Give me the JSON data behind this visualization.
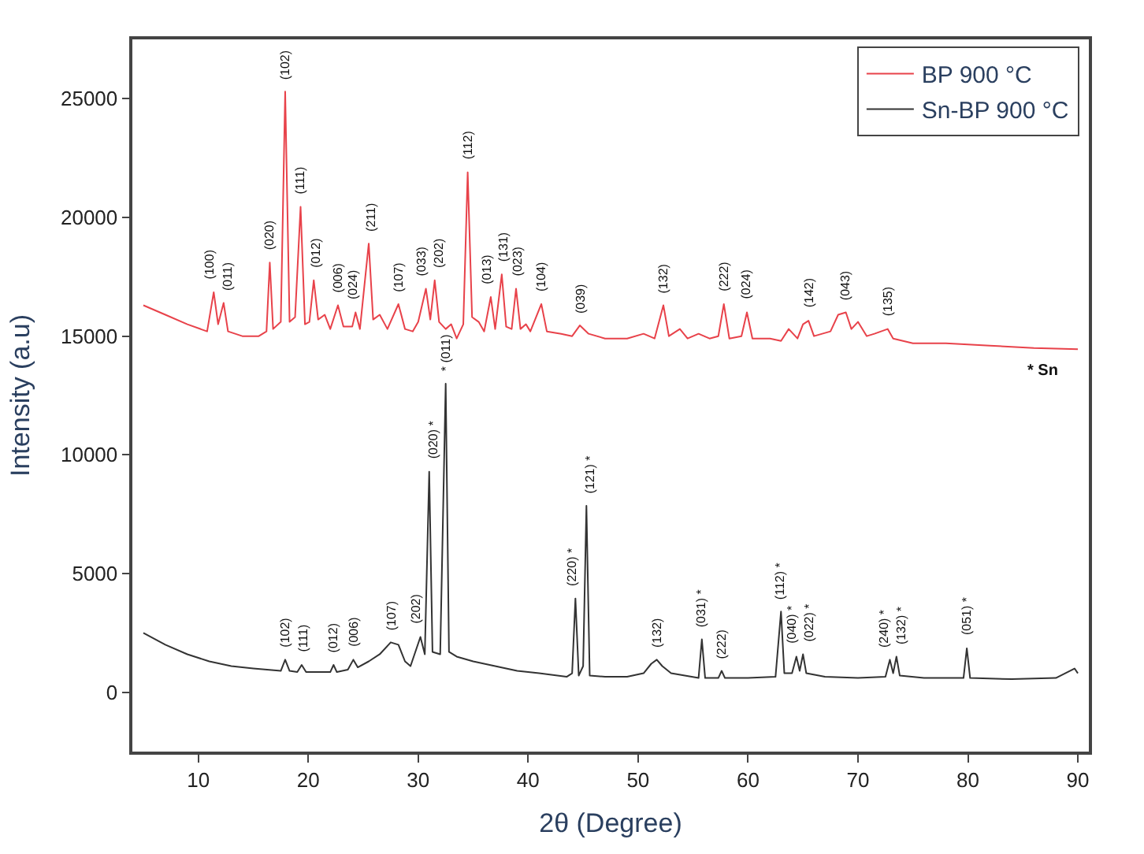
{
  "chart_data": {
    "type": "line",
    "xlabel": "2θ (Degree)",
    "ylabel": "Intensity (a.u)",
    "xlim": [
      4,
      91
    ],
    "xticks": [
      10,
      20,
      30,
      40,
      50,
      60,
      70,
      80,
      90
    ],
    "ylim": [
      -2500,
      27500
    ],
    "yticks": [
      0,
      5000,
      10000,
      15000,
      20000,
      25000
    ],
    "legend": "top right",
    "marker": "none",
    "line_style": "solid",
    "series": [
      {
        "name": "BP 900 °C",
        "color": "#e8424a",
        "x": [
          5,
          7,
          9,
          10.8,
          11.4,
          11.8,
          12.3,
          12.7,
          14,
          15.5,
          16.2,
          16.5,
          16.8,
          17.5,
          17.9,
          18.3,
          18.8,
          19.3,
          19.7,
          20.1,
          20.5,
          20.9,
          21.5,
          22.0,
          22.7,
          23.2,
          24.0,
          24.3,
          24.7,
          25.5,
          25.9,
          26.5,
          27.2,
          28.2,
          28.8,
          29.5,
          30.0,
          30.7,
          31.1,
          31.5,
          31.9,
          32.5,
          33.0,
          33.5,
          34.1,
          34.5,
          34.9,
          35.5,
          36.0,
          36.6,
          37.0,
          37.6,
          38.0,
          38.5,
          38.9,
          39.3,
          39.8,
          40.2,
          41.2,
          41.7,
          43,
          44,
          44.7,
          45.5,
          47,
          49,
          50.5,
          51.5,
          52.3,
          52.8,
          53.8,
          54.5,
          55.5,
          56.5,
          57.3,
          57.8,
          58.3,
          59.4,
          59.9,
          60.4,
          62,
          63,
          63.7,
          64.5,
          65,
          65.5,
          66,
          67.5,
          68.2,
          68.9,
          69.4,
          70,
          70.8,
          71.5,
          72.7,
          73.2,
          75,
          78,
          82,
          86,
          90
        ],
        "values": [
          16300,
          15900,
          15500,
          15200,
          16850,
          15500,
          16400,
          15200,
          15000,
          15000,
          15200,
          18100,
          15300,
          15600,
          25300,
          15600,
          15800,
          20450,
          15500,
          15600,
          17350,
          15700,
          15900,
          15300,
          16300,
          15400,
          15400,
          16000,
          15300,
          18900,
          15700,
          15900,
          15300,
          16350,
          15300,
          15200,
          15600,
          17000,
          15700,
          17350,
          15600,
          15300,
          15500,
          14900,
          15500,
          21900,
          15800,
          15600,
          15200,
          16650,
          15300,
          17600,
          15400,
          15300,
          17000,
          15300,
          15500,
          15200,
          16350,
          15200,
          15100,
          15000,
          15450,
          15100,
          14900,
          14900,
          15100,
          14900,
          16300,
          15000,
          15300,
          14900,
          15100,
          14900,
          15000,
          16350,
          14900,
          15000,
          16000,
          14900,
          14900,
          14800,
          15300,
          14900,
          15500,
          15650,
          15000,
          15200,
          15900,
          16000,
          15300,
          15600,
          15000,
          15100,
          15300,
          14900,
          14700,
          14700,
          14600,
          14500,
          14450
        ]
      },
      {
        "name": "Sn-BP 900 °C",
        "color": "#333333",
        "x": [
          5,
          7,
          9,
          11,
          13,
          15,
          17.5,
          17.9,
          18.3,
          19.0,
          19.4,
          19.8,
          21,
          22.0,
          22.3,
          22.6,
          23.6,
          24.1,
          24.5,
          25.5,
          26.5,
          27.5,
          28.2,
          28.8,
          29.3,
          30.2,
          30.6,
          31.0,
          31.3,
          32.0,
          32.5,
          32.8,
          33.5,
          35,
          37,
          39,
          41,
          43.5,
          44.0,
          44.3,
          44.6,
          45.0,
          45.3,
          45.6,
          47,
          49,
          50.5,
          51.2,
          51.7,
          52.2,
          53,
          55.5,
          55.8,
          56.1,
          57.3,
          57.6,
          57.9,
          60,
          62.5,
          63.0,
          63.3,
          64.0,
          64.4,
          64.7,
          65.0,
          65.3,
          67,
          70,
          72.5,
          72.9,
          73.2,
          73.5,
          73.8,
          76,
          79.6,
          79.9,
          80.2,
          84,
          88,
          89.7,
          90
        ],
        "values": [
          2500,
          2000,
          1600,
          1300,
          1100,
          1000,
          900,
          1370,
          900,
          850,
          1150,
          850,
          850,
          850,
          1150,
          850,
          950,
          1370,
          1050,
          1300,
          1600,
          2100,
          2000,
          1300,
          1100,
          2330,
          1600,
          9290,
          1700,
          1600,
          13000,
          1700,
          1500,
          1300,
          1100,
          900,
          800,
          650,
          800,
          3950,
          700,
          1100,
          7850,
          700,
          650,
          650,
          800,
          1200,
          1370,
          1100,
          800,
          600,
          2230,
          600,
          600,
          900,
          600,
          600,
          650,
          3400,
          800,
          800,
          1500,
          900,
          1600,
          800,
          650,
          600,
          650,
          1370,
          800,
          1500,
          700,
          600,
          600,
          1850,
          600,
          550,
          600,
          1000,
          800
        ]
      }
    ],
    "annotations": [
      {
        "text": "(100)",
        "x": 11.4,
        "y": 16850
      },
      {
        "text": "(011)",
        "x": 12.3,
        "y": 16400
      },
      {
        "text": "(020)",
        "x": 16.5,
        "y": 18100
      },
      {
        "text": "(102)",
        "x": 17.9,
        "y": 25300
      },
      {
        "text": "(111)",
        "x": 19.3,
        "y": 20450
      },
      {
        "text": "(012)",
        "x": 20.5,
        "y": 17350
      },
      {
        "text": "(006)",
        "x": 22.7,
        "y": 16300
      },
      {
        "text": "(024)",
        "x": 24.3,
        "y": 16000
      },
      {
        "text": "(211)",
        "x": 25.5,
        "y": 18900
      },
      {
        "text": "(107)",
        "x": 28.2,
        "y": 16350
      },
      {
        "text": "(033)",
        "x": 30.7,
        "y": 17000
      },
      {
        "text": "(202)",
        "x": 31.5,
        "y": 17350
      },
      {
        "text": "(112)",
        "x": 34.5,
        "y": 21900
      },
      {
        "text": "(013)",
        "x": 36.6,
        "y": 16650
      },
      {
        "text": "(131)",
        "x": 37.6,
        "y": 17600
      },
      {
        "text": "(023)",
        "x": 38.9,
        "y": 17000
      },
      {
        "text": "(104)",
        "x": 41.2,
        "y": 16350
      },
      {
        "text": "(039)",
        "x": 44.7,
        "y": 15450
      },
      {
        "text": "(132)",
        "x": 52.3,
        "y": 16300
      },
      {
        "text": "(222)",
        "x": 57.8,
        "y": 16350
      },
      {
        "text": "(024)",
        "x": 59.9,
        "y": 16000
      },
      {
        "text": "(142)",
        "x": 65.5,
        "y": 15650
      },
      {
        "text": "(043)",
        "x": 68.9,
        "y": 16000
      },
      {
        "text": "(135)",
        "x": 72.7,
        "y": 15300
      },
      {
        "text": "(102)",
        "x": 17.9,
        "y": 1370
      },
      {
        "text": "(111)",
        "x": 19.4,
        "y": 1150
      },
      {
        "text": "(012)",
        "x": 22.3,
        "y": 1150
      },
      {
        "text": "(006)",
        "x": 24.1,
        "y": 1370
      },
      {
        "text": "(107)",
        "x": 27.5,
        "y": 2100
      },
      {
        "text": "(202)",
        "x": 30.2,
        "y": 2330
      },
      {
        "text": "(020) *",
        "x": 31.0,
        "y": 9290
      },
      {
        "text": "* (011)",
        "x": 32.5,
        "y": 13000
      },
      {
        "text": "(220) *",
        "x": 44.3,
        "y": 3950
      },
      {
        "text": "(121) *",
        "x": 45.3,
        "y": 7850
      },
      {
        "text": "(132)",
        "x": 51.7,
        "y": 1370
      },
      {
        "text": "(031) *",
        "x": 55.8,
        "y": 2230
      },
      {
        "text": "(222)",
        "x": 57.6,
        "y": 900
      },
      {
        "text": "(112) *",
        "x": 63.0,
        "y": 3400
      },
      {
        "text": "(040) *",
        "x": 64.4,
        "y": 1500
      },
      {
        "text": "(022) *",
        "x": 65.0,
        "y": 1600
      },
      {
        "text": "(240) *",
        "x": 72.9,
        "y": 1370
      },
      {
        "text": "(132) *",
        "x": 73.5,
        "y": 1500
      },
      {
        "text": "(051) *",
        "x": 79.9,
        "y": 1850
      },
      "* Sn"
    ]
  }
}
